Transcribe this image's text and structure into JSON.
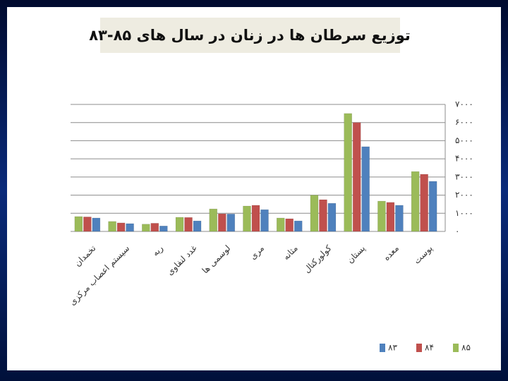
{
  "chart_data": {
    "type": "bar",
    "title": "توزیع سرطان ها در زنان در سال های ۸۵-۸۳",
    "categories": [
      "تخمدان",
      "سیستم اعصاب مرکزی",
      "ریه",
      "غدد لنفاوی",
      "لوسمی ها",
      "مری",
      "مثانه",
      "کولورکتال",
      "پستان",
      "معده",
      "پوست"
    ],
    "series": [
      {
        "name": "۸۵",
        "color": "#9bbb59",
        "values": [
          820,
          550,
          400,
          780,
          1240,
          1400,
          740,
          2000,
          6500,
          1670,
          3300
        ]
      },
      {
        "name": "۸۴",
        "color": "#c0504d",
        "values": [
          800,
          470,
          450,
          770,
          970,
          1440,
          700,
          1750,
          6000,
          1600,
          3150
        ]
      },
      {
        "name": "۸۳",
        "color": "#4f81bd",
        "values": [
          740,
          430,
          300,
          580,
          960,
          1200,
          580,
          1550,
          4670,
          1440,
          2760
        ]
      }
    ],
    "ylim": [
      0,
      7000
    ],
    "yticks": [
      {
        "value": 0,
        "label": "۰"
      },
      {
        "value": 1000,
        "label": "۱۰۰۰"
      },
      {
        "value": 2000,
        "label": "۲۰۰۰"
      },
      {
        "value": 3000,
        "label": "۳۰۰۰"
      },
      {
        "value": 4000,
        "label": "۴۰۰۰"
      },
      {
        "value": 5000,
        "label": "۵۰۰۰"
      },
      {
        "value": 6000,
        "label": "۶۰۰۰"
      },
      {
        "value": 7000,
        "label": "۷۰۰۰"
      }
    ],
    "grid": true
  }
}
